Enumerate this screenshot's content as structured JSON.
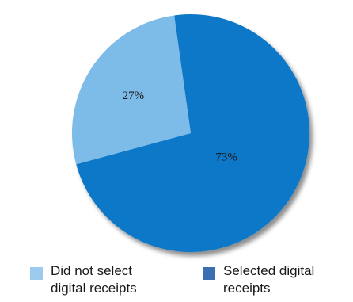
{
  "chart_data": {
    "type": "pie",
    "categories": [
      "Did not select digital receipts",
      "Selected digital receipts"
    ],
    "values": [
      27,
      73
    ],
    "value_labels": [
      "27%",
      "73%"
    ],
    "colors": [
      "#7dbbe8",
      "#0a78c8"
    ],
    "start_angle_deg": -8,
    "legend_position": "bottom"
  },
  "legend": {
    "items": [
      {
        "label": "Did not select\ndigital receipts",
        "color": "#9dcbed"
      },
      {
        "label": "Selected digital\nreceipts",
        "color": "#3a6fb2"
      }
    ]
  }
}
